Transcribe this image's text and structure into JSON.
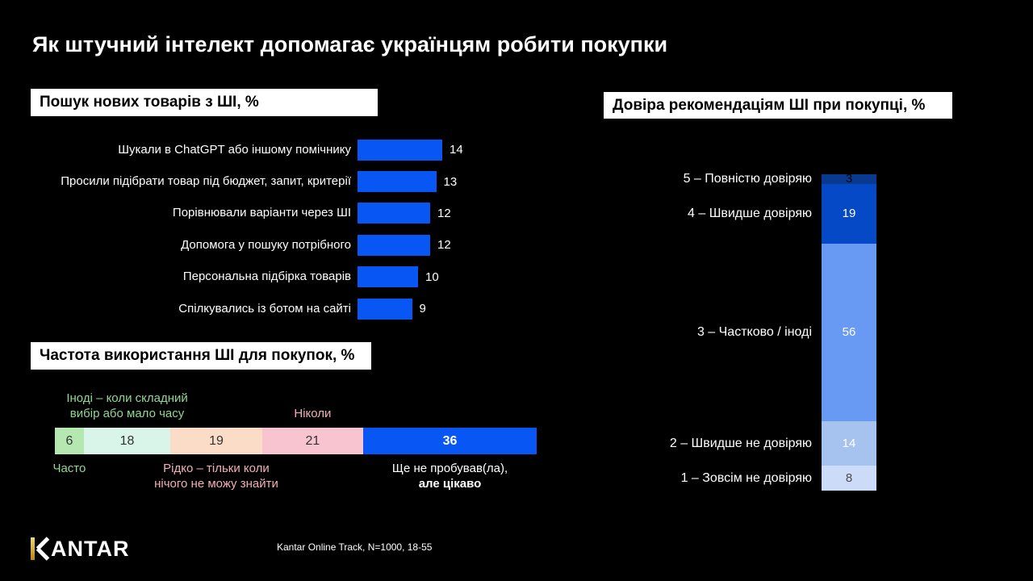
{
  "page_title": "Як штучний інтелект допомагає українцям робити покупки",
  "chart_data": [
    {
      "type": "bar",
      "orientation": "horizontal",
      "title": "Пошук нових товарів з ШІ, %",
      "categories": [
        "Шукали в ChatGPT або іншому помічнику",
        "Просили підібрати товар під бюджет, запит, критерії",
        "Порівнювали варіанти через ШІ",
        "Допомога у пошуку потрібного",
        "Персональна підбірка товарів",
        "Спілкувались із ботом на сайті"
      ],
      "values": [
        14,
        13,
        12,
        12,
        10,
        9
      ],
      "bar_color": "#0857f5",
      "value_label_color": "#ffffff",
      "grid": false
    },
    {
      "type": "bar",
      "stacked": true,
      "orientation": "horizontal",
      "title": "Частота використання ШІ для покупок, %",
      "xlim": [
        0,
        100
      ],
      "segments": [
        {
          "label": "Часто",
          "value": 6,
          "color": "#b5e7b0",
          "value_text_color": "#333333",
          "value_bold": false,
          "label_color": "#90d793",
          "label_position": "below"
        },
        {
          "label": "Іноді – коли складний\nвибір або мало часу",
          "value": 18,
          "color": "#d9f4e9",
          "value_text_color": "#333333",
          "value_bold": false,
          "label_color": "#90d793",
          "label_position": "above"
        },
        {
          "label": "Рідко – тільки коли\nнічого не можу знайти",
          "value": 19,
          "color": "#fbdcc6",
          "value_text_color": "#333333",
          "value_bold": false,
          "label_color": "#f4aeb6",
          "label_position": "below"
        },
        {
          "label": "Ніколи",
          "value": 21,
          "color": "#f8c4d0",
          "value_text_color": "#333333",
          "value_bold": false,
          "label_color": "#f4aeb6",
          "label_position": "above"
        },
        {
          "label": "Ще не пробував(ла),\nале цікаво",
          "value": 36,
          "color": "#0857f5",
          "value_text_color": "#ffffff",
          "value_bold": true,
          "label_color": "#ffffff",
          "label_position": "below",
          "label_bold_line": "але цікаво"
        }
      ]
    },
    {
      "type": "bar",
      "stacked": true,
      "orientation": "vertical",
      "title": "Довіра рекомендаціям ШІ при покупці, %",
      "ylim": [
        0,
        100
      ],
      "segments": [
        {
          "label": "5 – Повністю довіряю",
          "value": 3,
          "color": "#0a3a90",
          "value_text_color": "#000000"
        },
        {
          "label": "4 – Швидше довіряю",
          "value": 19,
          "color": "#0549c7",
          "value_text_color": "#ffffff"
        },
        {
          "label": "3 – Частково / іноді",
          "value": 56,
          "color": "#699af3",
          "value_text_color": "#ffffff"
        },
        {
          "label": "2 – Швидше не довіряю",
          "value": 14,
          "color": "#a6c3ef",
          "value_text_color": "#ffffff"
        },
        {
          "label": "1 – Зовсім не довіряю",
          "value": 8,
          "color": "#ccdcf8",
          "value_text_color": "#4a4a4a"
        }
      ]
    }
  ],
  "footer": {
    "logo_text": "KANTAR",
    "logo_icon": "kantar-k-gold-stem-icon",
    "source": "Kantar Online Track, N=1000, 18-55"
  }
}
